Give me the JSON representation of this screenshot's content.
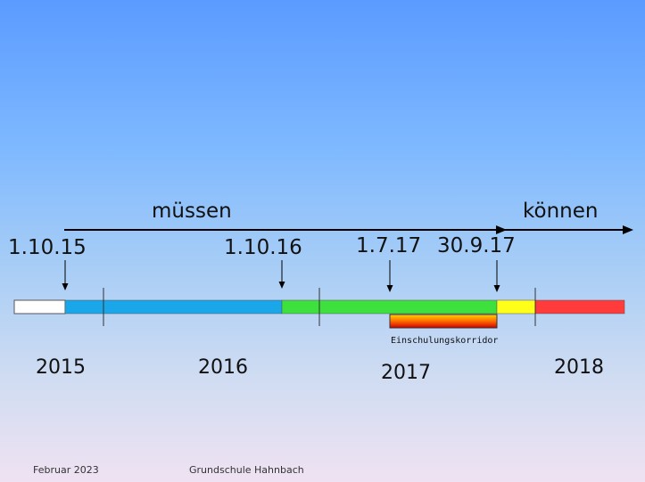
{
  "labels": {
    "muessen": "müssen",
    "koennen": "können",
    "korridor": "Einschulungskorridor"
  },
  "dates": [
    "1.10.15",
    "1.10.16",
    "1.7.17",
    "30.9.17"
  ],
  "years": [
    "2015",
    "2016",
    "2017",
    "2018"
  ],
  "footer": {
    "date": "Februar 2023",
    "school": "Grundschule Hahnbach"
  },
  "colors": {
    "white_segment": "#ffffff",
    "blue_segment": "#1aa7ea",
    "green_segment": "#3ee03e",
    "yellow_segment": "#ffff1a",
    "red_segment": "#ff3b3b",
    "corridor_top": "#ffd400",
    "corridor_bottom": "#cc0000"
  }
}
